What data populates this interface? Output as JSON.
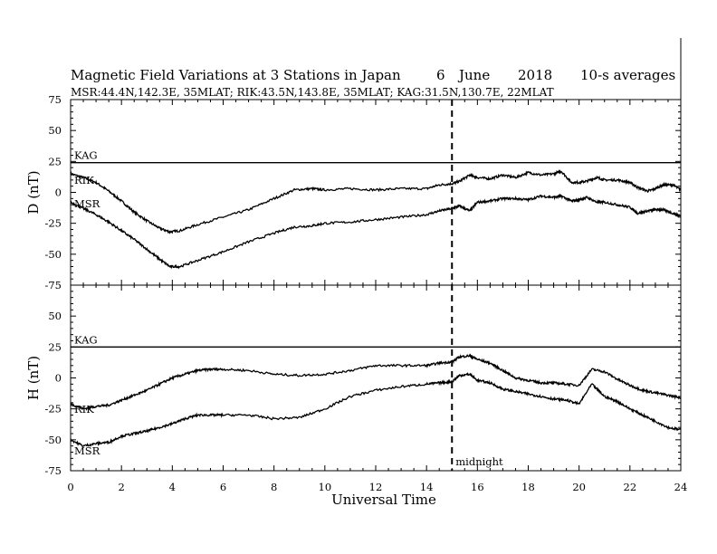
{
  "chart_data": {
    "type": "line",
    "title": "Magnetic Field Variations at 3 Stations in Japan",
    "date_day": "6",
    "date_month": "June",
    "date_year": "2018",
    "averaging": "10-s averages",
    "subtitle": "MSR:44.4N,142.3E, 35MLAT;  RIK:43.5N,143.8E, 35MLAT;  KAG:31.5N,130.7E, 22MLAT",
    "xlabel": "Universal Time",
    "xlim": [
      0,
      24
    ],
    "xticks": [
      "0",
      "2",
      "4",
      "6",
      "8",
      "10",
      "12",
      "14",
      "16",
      "18",
      "20",
      "22",
      "24"
    ],
    "marker": {
      "x": 15,
      "label": "midnight",
      "style": "dashed"
    },
    "panels": [
      {
        "ylabel": "D (nT)",
        "ylim": [
          -75,
          75
        ],
        "yticks": [
          "75",
          "50",
          "25",
          "0",
          "-25",
          "-50",
          "-75"
        ],
        "series": [
          {
            "name": "KAG",
            "x": [
              0,
              24
            ],
            "y": [
              24,
              24
            ]
          },
          {
            "name": "RIK",
            "x": [
              0,
              0.5,
              1,
              1.5,
              2,
              2.5,
              3,
              3.5,
              3.9,
              4.3,
              5,
              6,
              7,
              8,
              8.8,
              9.5,
              10,
              11,
              12,
              13,
              14,
              14.5,
              15,
              15.3,
              15.7,
              16,
              16.5,
              17,
              17.5,
              18,
              18.5,
              19,
              19.3,
              19.7,
              20,
              20.3,
              20.7,
              21,
              21.5,
              22,
              22.3,
              22.7,
              23,
              23.3,
              23.7,
              24
            ],
            "y": [
              15,
              12,
              8,
              1,
              -7,
              -16,
              -23,
              -29,
              -32,
              -31,
              -26,
              -20,
              -14,
              -5,
              2,
              3,
              2,
              3,
              2,
              3,
              3,
              6,
              7,
              9,
              14,
              12,
              11,
              14,
              12,
              16,
              14,
              15,
              17,
              8,
              8,
              9,
              12,
              10,
              10,
              8,
              4,
              1,
              3,
              6,
              6,
              2
            ]
          },
          {
            "name": "MSR",
            "x": [
              0,
              0.5,
              1,
              1.5,
              2,
              2.5,
              3,
              3.5,
              3.9,
              4.3,
              5,
              6,
              7,
              8,
              8.8,
              9.5,
              10,
              11,
              12,
              13,
              14,
              14.5,
              15,
              15.3,
              15.7,
              16,
              16.5,
              17,
              17.5,
              18,
              18.5,
              19,
              19.3,
              19.7,
              20,
              20.3,
              20.7,
              21,
              21.5,
              22,
              22.3,
              22.7,
              23,
              23.3,
              23.7,
              24
            ],
            "y": [
              -8,
              -13,
              -18,
              -24,
              -31,
              -38,
              -46,
              -54,
              -60,
              -60,
              -55,
              -48,
              -40,
              -33,
              -28,
              -27,
              -25,
              -24,
              -22,
              -20,
              -18,
              -15,
              -13,
              -11,
              -15,
              -8,
              -7,
              -5,
              -5,
              -6,
              -3,
              -4,
              -3,
              -7,
              -6,
              -4,
              -8,
              -8,
              -10,
              -12,
              -17,
              -15,
              -14,
              -14,
              -17,
              -19
            ]
          }
        ]
      },
      {
        "ylabel": "H (nT)",
        "ylim": [
          -75,
          75
        ],
        "yticks": [
          "75",
          "50",
          "25",
          "0",
          "-25",
          "-50",
          "-75"
        ],
        "series": [
          {
            "name": "KAG",
            "x": [
              0,
              24
            ],
            "y": [
              25,
              25
            ]
          },
          {
            "name": "RIK",
            "x": [
              0,
              0.5,
              1,
              1.5,
              2,
              2.5,
              3,
              3.5,
              4,
              4.5,
              5,
              5.5,
              6,
              7,
              8,
              9,
              10,
              11,
              12,
              13,
              14,
              14.5,
              15,
              15.3,
              15.7,
              16,
              16.5,
              17,
              17.5,
              18,
              18.5,
              19,
              19.5,
              20,
              20.5,
              21,
              21.5,
              22,
              22.5,
              23,
              23.5,
              24
            ],
            "y": [
              -21,
              -25,
              -23,
              -22,
              -18,
              -14,
              -10,
              -5,
              0,
              3,
              6,
              7,
              7,
              6,
              3,
              2,
              3,
              6,
              10,
              10,
              10,
              12,
              13,
              17,
              18,
              15,
              12,
              6,
              0,
              -2,
              -4,
              -4,
              -5,
              -6,
              7,
              5,
              -1,
              -6,
              -10,
              -12,
              -14,
              -16
            ]
          },
          {
            "name": "MSR",
            "x": [
              0,
              0.5,
              1,
              1.5,
              2,
              2.5,
              3,
              3.5,
              4,
              4.5,
              5,
              5.5,
              6,
              7,
              8,
              9,
              10,
              11,
              12,
              13,
              14,
              14.5,
              15,
              15.3,
              15.7,
              16,
              16.5,
              17,
              17.5,
              18,
              18.5,
              19,
              19.5,
              20,
              20.5,
              21,
              21.5,
              22,
              22.5,
              23,
              23.5,
              24
            ],
            "y": [
              -50,
              -55,
              -53,
              -52,
              -47,
              -45,
              -43,
              -40,
              -37,
              -33,
              -30,
              -30,
              -30,
              -30,
              -33,
              -32,
              -25,
              -15,
              -10,
              -7,
              -5,
              -4,
              -3,
              2,
              3,
              -2,
              -4,
              -9,
              -11,
              -13,
              -15,
              -17,
              -18,
              -21,
              -5,
              -15,
              -19,
              -25,
              -30,
              -35,
              -40,
              -42
            ]
          }
        ]
      }
    ]
  }
}
